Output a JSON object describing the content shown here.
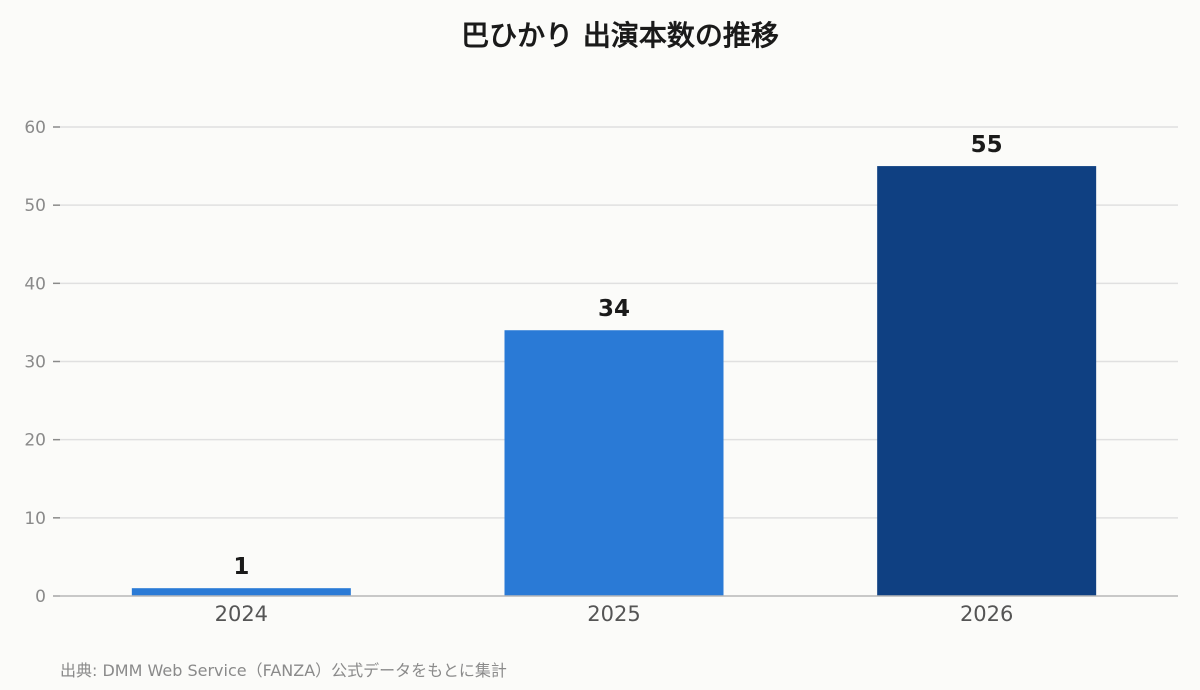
{
  "chart_data": {
    "type": "bar",
    "title": "巴ひかり 出演本数の推移",
    "categories": [
      "2024",
      "2025",
      "2026"
    ],
    "values": [
      1,
      34,
      55
    ],
    "ylim": [
      0,
      60
    ],
    "yticks": [
      0,
      10,
      20,
      30,
      40,
      50,
      60
    ],
    "grid": true,
    "legend": "none",
    "bar_colors": [
      "#2a7ad6",
      "#2a7ad6",
      "#0f4082"
    ],
    "source": "出典: DMM Web Service（FANZA）公式データをもとに集計"
  }
}
